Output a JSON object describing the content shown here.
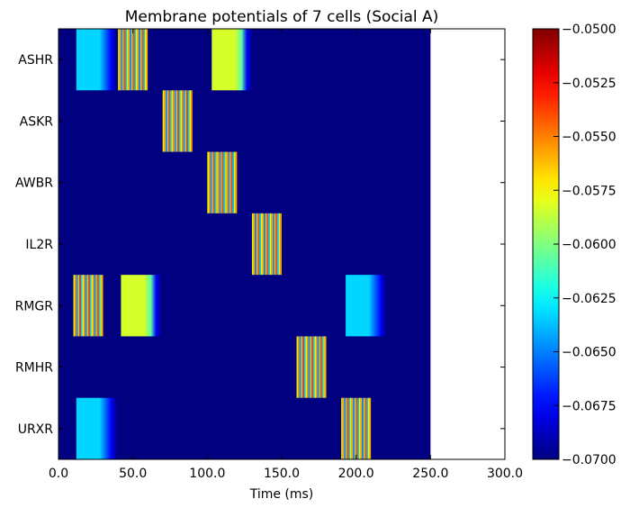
{
  "chart_data": {
    "type": "heatmap",
    "title": "Membrane potentials of 7 cells (Social A)",
    "xlabel": "Time (ms)",
    "ylabel": "",
    "xlim": [
      0,
      300
    ],
    "data_end_ms": 250,
    "x_ticks": [
      0,
      50,
      100,
      150,
      200,
      250,
      300
    ],
    "x_tick_labels": [
      "0.0",
      "50.0",
      "100.0",
      "150.0",
      "200.0",
      "250.0",
      "300.0"
    ],
    "rows": [
      "ASHR",
      "ASKR",
      "AWBR",
      "IL2R",
      "RMGR",
      "RMHR",
      "URXR"
    ],
    "value_unit": "V",
    "baseline_value": -0.07,
    "colorbar": {
      "min": -0.07,
      "max": -0.05,
      "colormap": "jet",
      "ticks": [
        -0.05,
        -0.0525,
        -0.055,
        -0.0575,
        -0.06,
        -0.0625,
        -0.065,
        -0.0675,
        -0.07
      ],
      "tick_labels": [
        "−0.0500",
        "−0.0525",
        "−0.0550",
        "−0.0575",
        "−0.0600",
        "−0.0625",
        "−0.0650",
        "−0.0675",
        "−0.0700"
      ]
    },
    "grid": false,
    "events": [
      {
        "cell": "ASHR",
        "kind": "plateau",
        "start": 12,
        "end": 32,
        "value": -0.0633
      },
      {
        "cell": "ASHR",
        "kind": "spiking",
        "start": 40,
        "end": 60
      },
      {
        "cell": "ASHR",
        "kind": "plateau",
        "start": 103,
        "end": 123,
        "value": -0.0583
      },
      {
        "cell": "ASKR",
        "kind": "spiking",
        "start": 70,
        "end": 90
      },
      {
        "cell": "AWBR",
        "kind": "spiking",
        "start": 100,
        "end": 120
      },
      {
        "cell": "IL2R",
        "kind": "spiking",
        "start": 130,
        "end": 150
      },
      {
        "cell": "RMGR",
        "kind": "spiking",
        "start": 10,
        "end": 30
      },
      {
        "cell": "RMGR",
        "kind": "plateau",
        "start": 42,
        "end": 62,
        "value": -0.0583
      },
      {
        "cell": "RMGR",
        "kind": "plateau",
        "start": 193,
        "end": 213,
        "value": -0.0633
      },
      {
        "cell": "RMHR",
        "kind": "spiking",
        "start": 160,
        "end": 180
      },
      {
        "cell": "URXR",
        "kind": "plateau",
        "start": 12,
        "end": 32,
        "value": -0.0633
      },
      {
        "cell": "URXR",
        "kind": "spiking",
        "start": 190,
        "end": 210
      }
    ]
  }
}
